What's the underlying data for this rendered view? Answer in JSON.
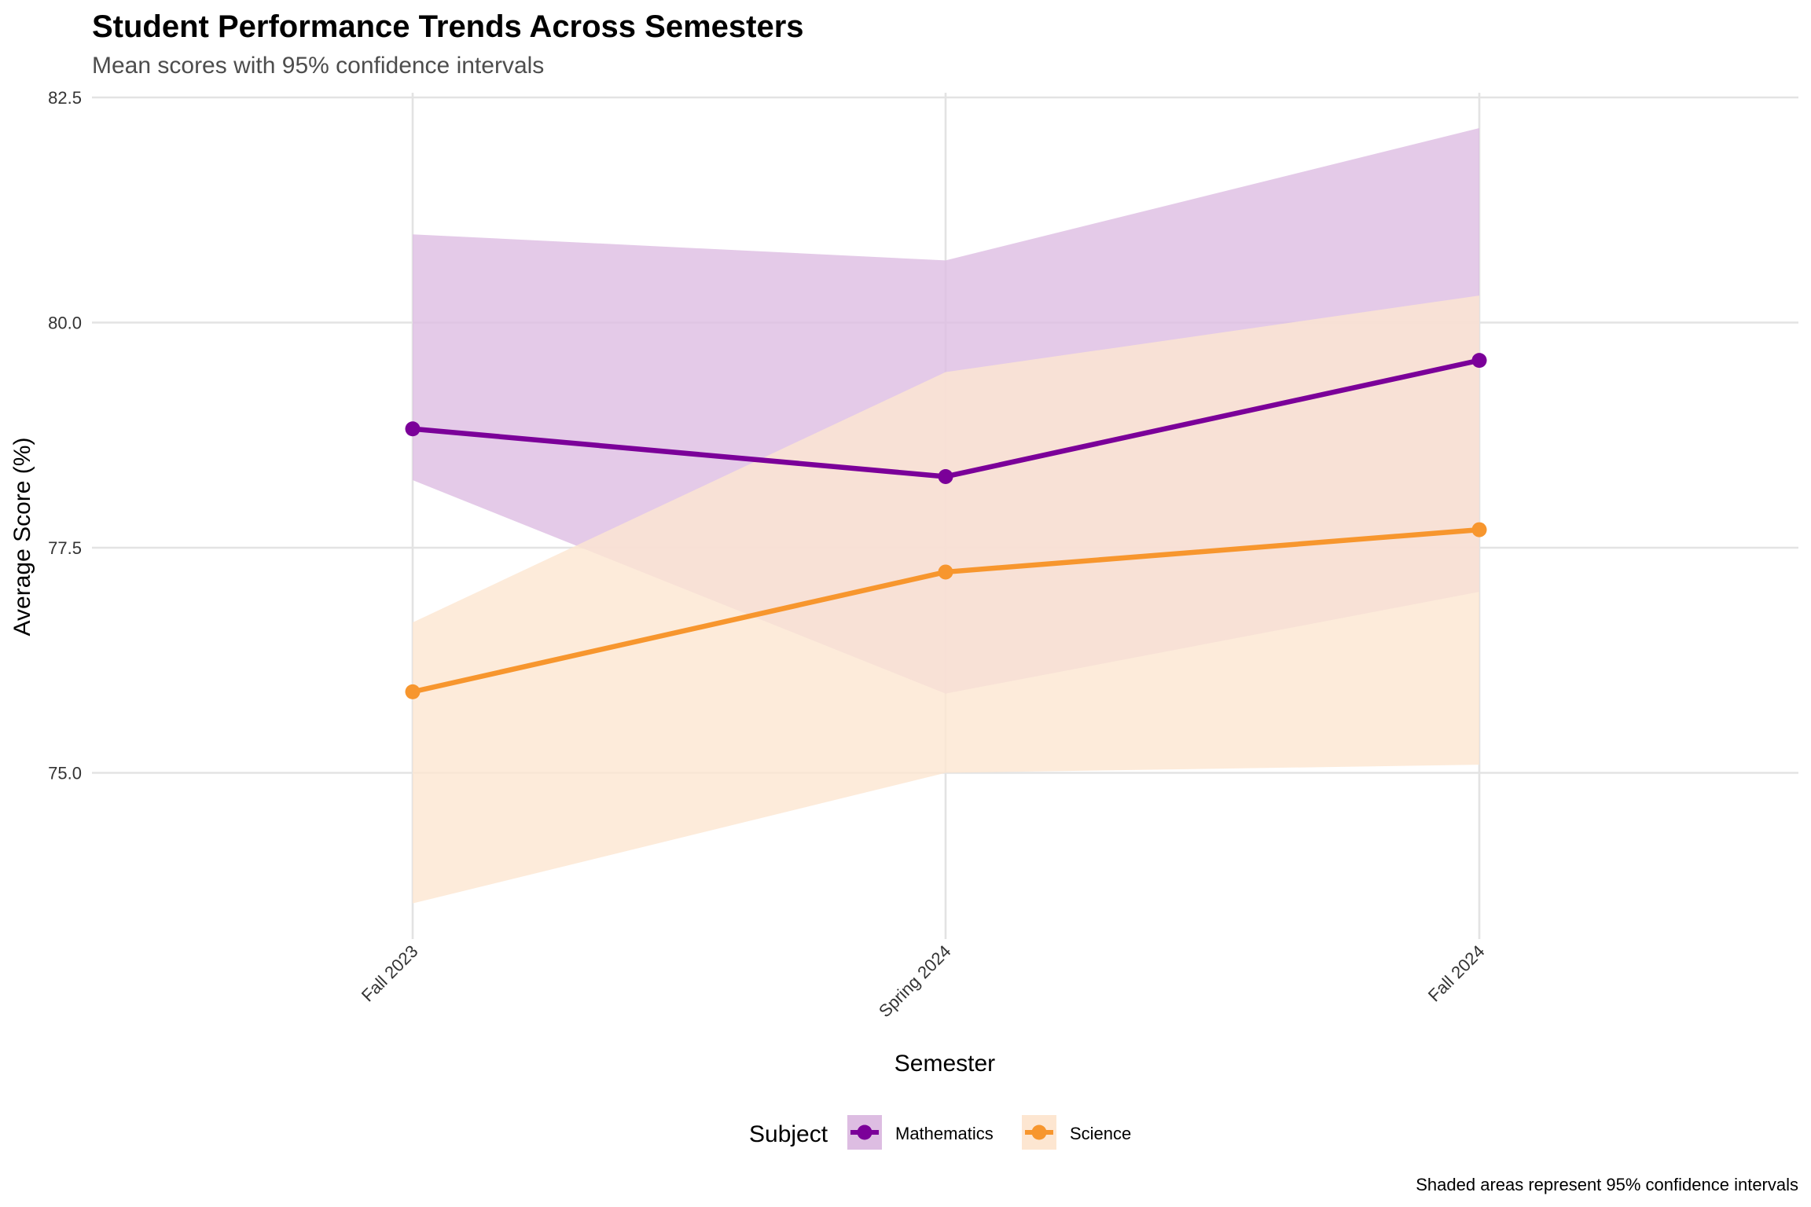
{
  "chart_data": {
    "type": "line",
    "title": "Student Performance Trends Across Semesters",
    "subtitle": "Mean scores with 95% confidence intervals",
    "xlabel": "Semester",
    "ylabel": "Average Score (%)",
    "categories": [
      "Fall 2023",
      "Spring 2024",
      "Fall 2024"
    ],
    "ylim": [
      73.1,
      82.6
    ],
    "yticks": [
      75.0,
      77.5,
      80.0,
      82.5
    ],
    "ytick_labels": [
      "75.0",
      "77.5",
      "80.0",
      "82.5"
    ],
    "grid": true,
    "legend": {
      "title": "Subject",
      "placement": "bottom"
    },
    "caption": "Shaded areas represent 95% confidence intervals",
    "series": [
      {
        "name": "Mathematics",
        "color": "#7b0099",
        "ribbon_color": "#ddbde2",
        "values": [
          78.82,
          78.29,
          79.58
        ],
        "ci_lower": [
          78.25,
          75.88,
          77.01
        ],
        "ci_upper": [
          80.98,
          80.69,
          82.16
        ]
      },
      {
        "name": "Science",
        "color": "#f7962e",
        "ribbon_color": "#fde6d1",
        "values": [
          75.9,
          77.23,
          77.7
        ],
        "ci_lower": [
          73.55,
          75.0,
          75.09
        ],
        "ci_upper": [
          76.67,
          79.45,
          80.3
        ]
      }
    ]
  }
}
